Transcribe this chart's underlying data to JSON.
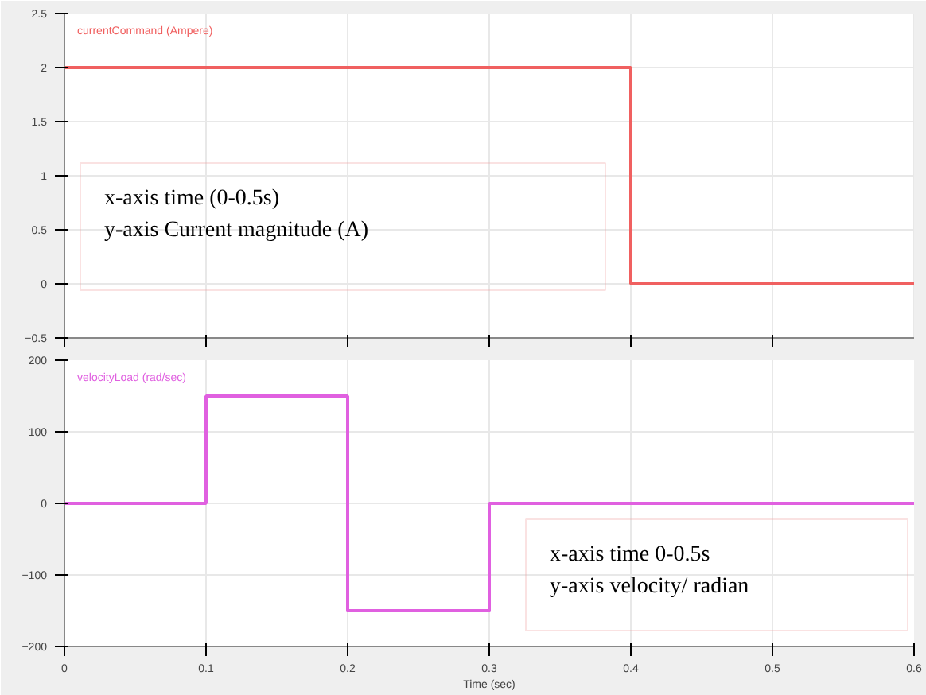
{
  "chart_data": [
    {
      "type": "step",
      "x": [
        0,
        0.4,
        0.6
      ],
      "xlim": [
        0,
        0.6
      ],
      "ylim": [
        -0.5,
        2.5
      ],
      "yticks": [
        -0.5,
        0,
        0.5,
        1,
        1.5,
        2,
        2.5
      ],
      "tick_labels": "y",
      "grid": true,
      "series": [
        {
          "name": "currentCommand (Ampere)",
          "color": "#f06060",
          "values": [
            2,
            0,
            0
          ]
        }
      ],
      "annotations": [
        "x-axis    time (0-0.5s)",
        "y-axis    Current magnitude (A)"
      ]
    },
    {
      "type": "step",
      "x": [
        0,
        0.1,
        0.2,
        0.3,
        0.6
      ],
      "xlim": [
        0,
        0.6
      ],
      "xticks": [
        0,
        0.1,
        0.2,
        0.3,
        0.4,
        0.5,
        0.6
      ],
      "ylim": [
        -200,
        200
      ],
      "yticks": [
        -200,
        -100,
        0,
        100,
        200
      ],
      "xlabel": "Time (sec)",
      "grid": true,
      "series": [
        {
          "name": "velocityLoad (rad/sec)",
          "color": "#e060e0",
          "values": [
            0,
            150,
            -150,
            0,
            0
          ]
        }
      ],
      "annotations": [
        "x-axis    time 0-0.5s",
        "y-axis    velocity/ radian"
      ]
    }
  ]
}
